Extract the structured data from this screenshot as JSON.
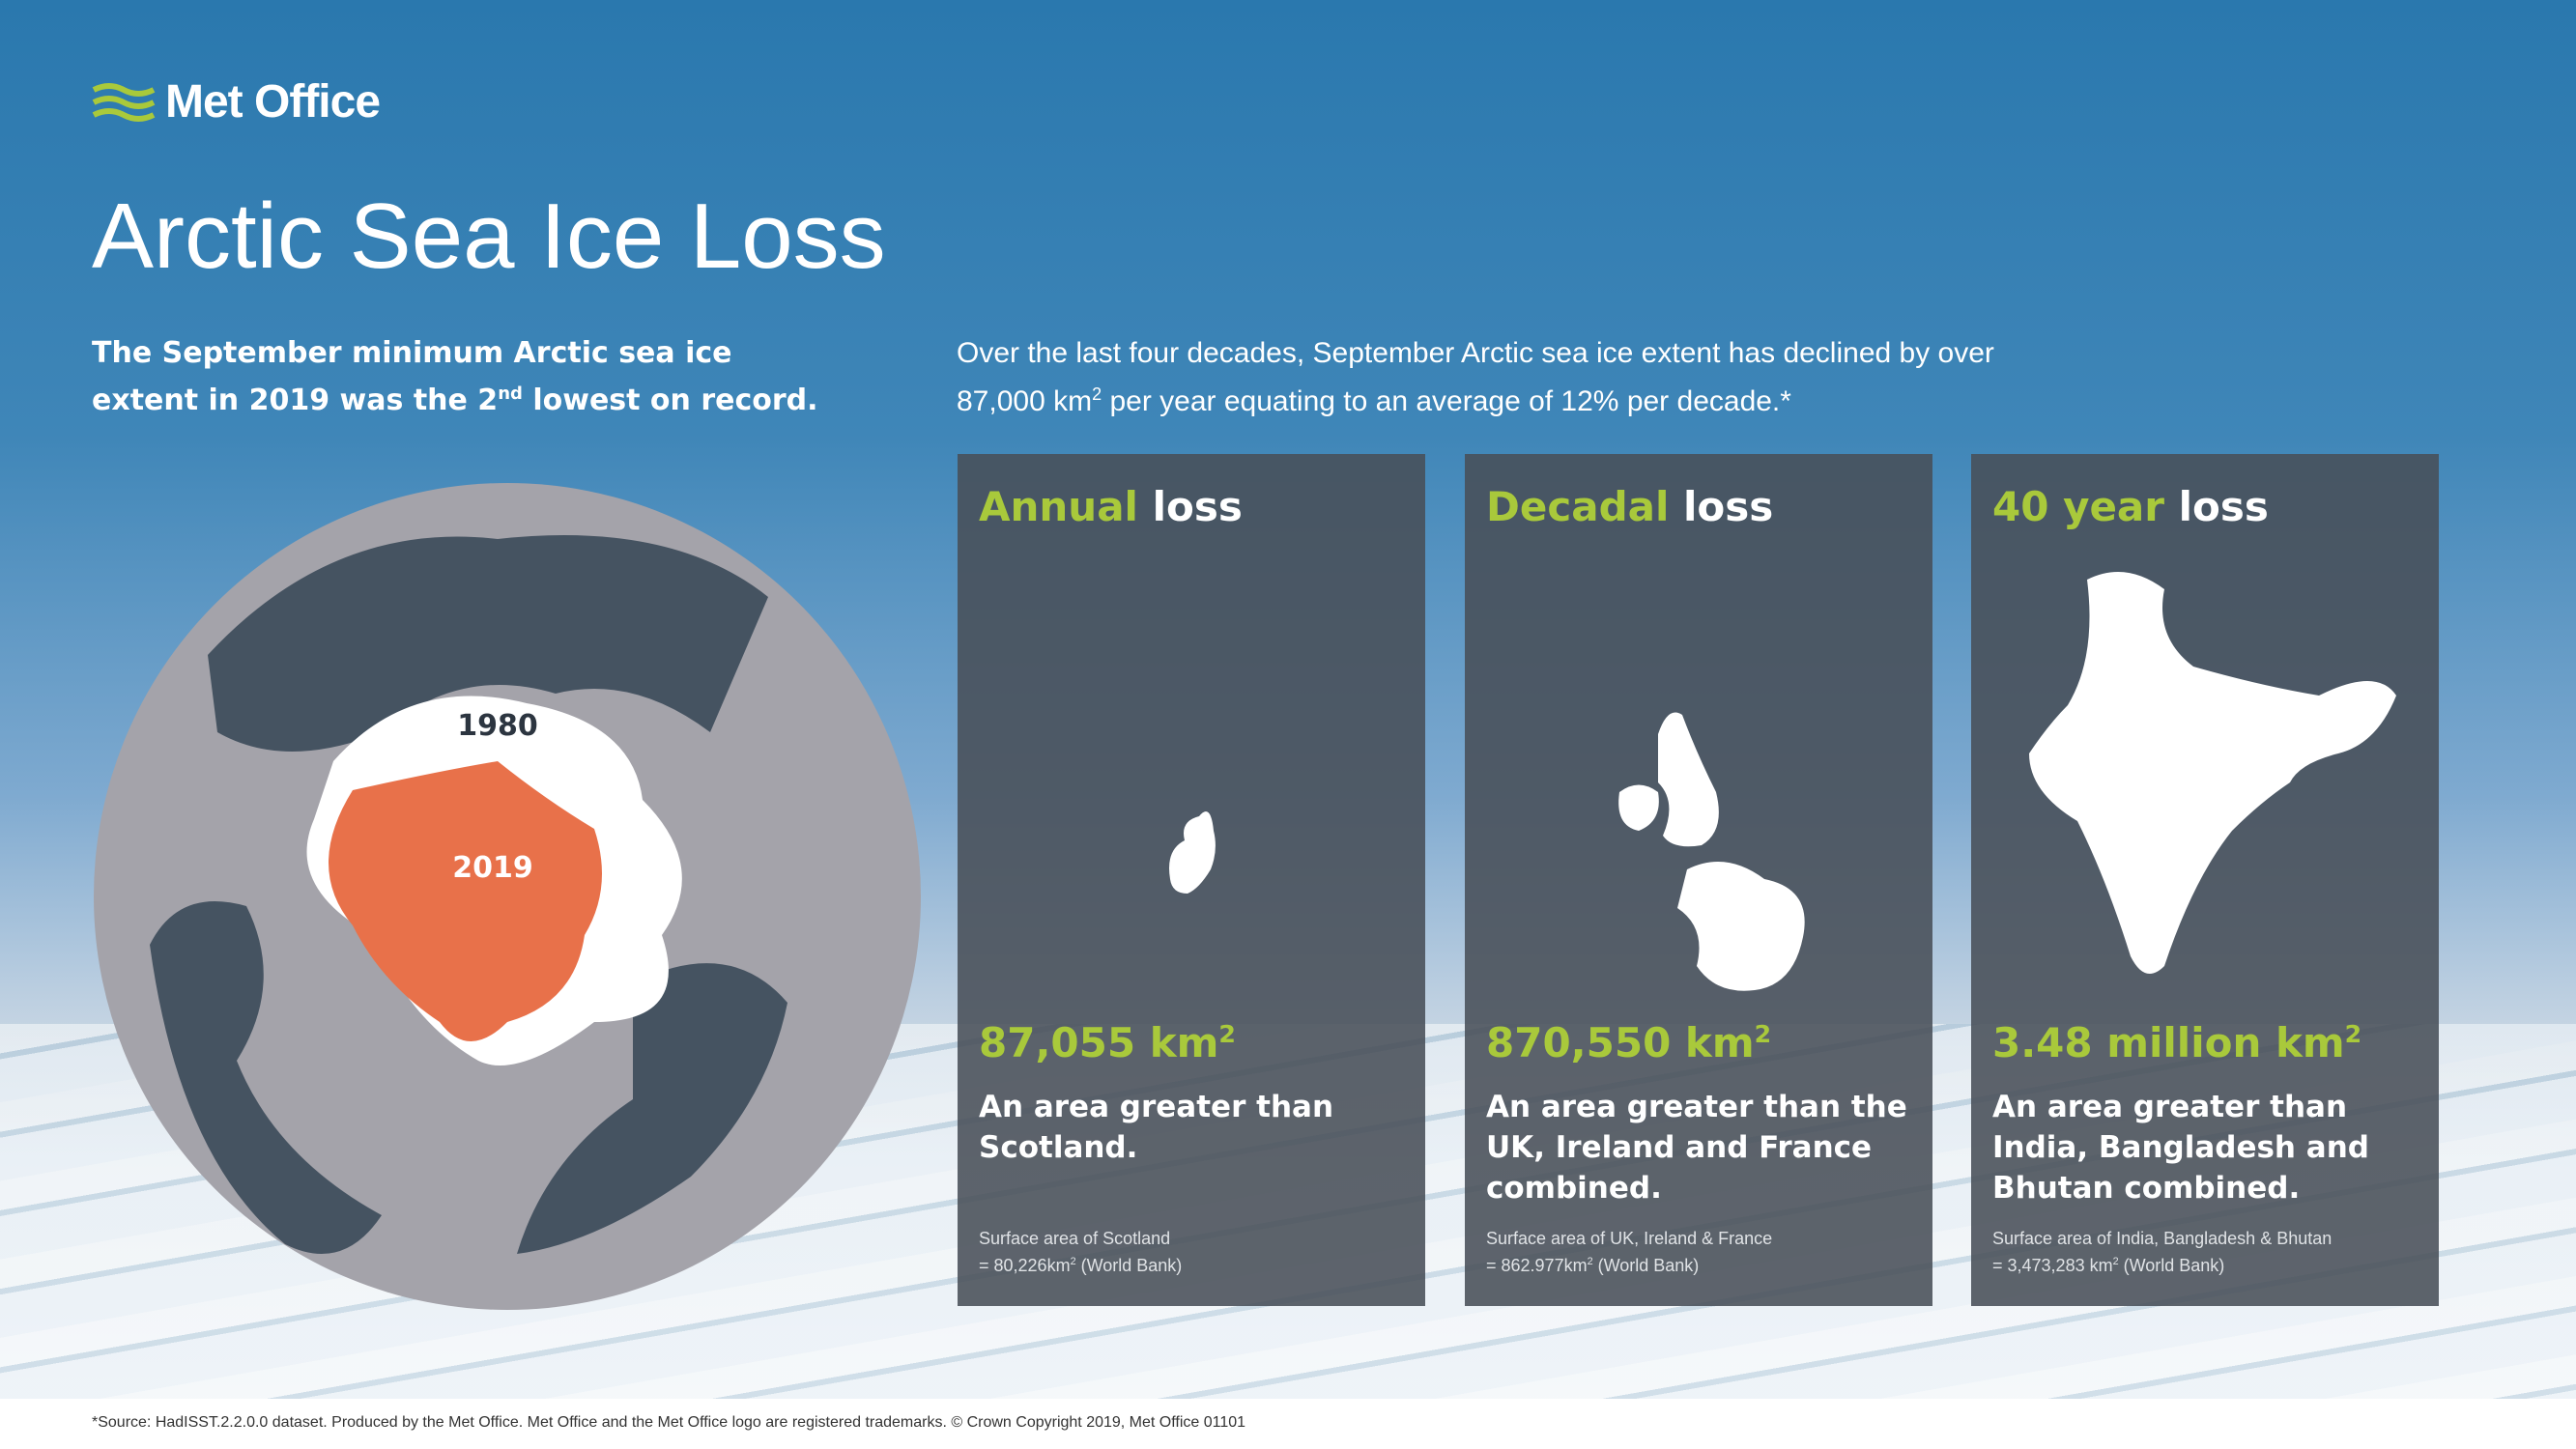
{
  "brand": {
    "name": "Met Office",
    "accent": "#a9c93b"
  },
  "title": "Arctic Sea Ice Loss",
  "lead": {
    "text": "The September minimum Arctic sea ice extent in 2019 was the 2",
    "sup": "nd",
    "tail": " lowest on record."
  },
  "intro": {
    "a": "Over the last four decades, September Arctic sea ice extent has declined by over 87,000 km",
    "sup": "2",
    "b": " per year equating to an average of 12% per decade.*"
  },
  "map": {
    "label_1980": "1980",
    "label_2019": "2019",
    "color_2019": "#e8714a",
    "color_1980": "#ffffff"
  },
  "cards": [
    {
      "highlight": "Annual",
      "rest": " loss",
      "value": "87,055 km",
      "value_sup": "2",
      "desc": "An area greater than Scotland.",
      "note1": "Surface area of Scotland",
      "note2a": "= 80,226km",
      "note2b": " (World Bank)"
    },
    {
      "highlight": "Decadal",
      "rest": " loss",
      "value": "870,550 km",
      "value_sup": "2",
      "desc": "An area greater than the UK, Ireland and France combined.",
      "note1": "Surface area of UK, Ireland & France",
      "note2a": "= 862.977km",
      "note2b": " (World Bank)"
    },
    {
      "highlight": "40 year",
      "rest": " loss",
      "value": "3.48 million km",
      "value_sup": "2",
      "desc": "An area greater than India, Bangladesh and Bhutan combined.",
      "note1": "Surface area of India, Bangladesh & Bhutan",
      "note2a": "= 3,473,283 km",
      "note2b": " (World Bank)"
    }
  ],
  "footer": "*Source: HadISST.2.2.0.0 dataset. Produced by the Met Office. Met Office and the Met Office logo are registered trademarks. © Crown Copyright 2019, Met Office  01101"
}
